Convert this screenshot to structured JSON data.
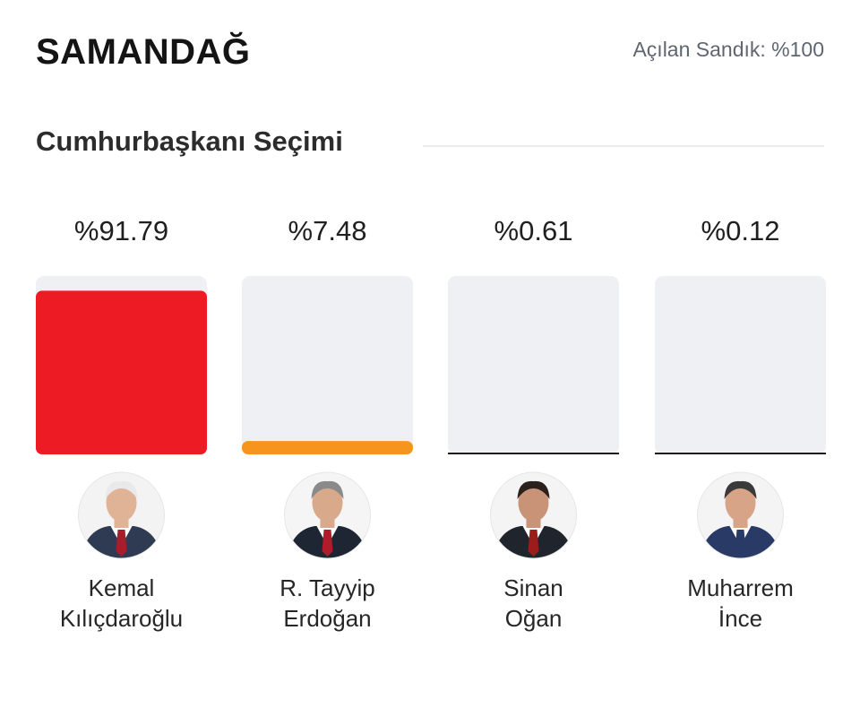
{
  "header": {
    "city": "SAMANDAĞ",
    "opened_ballot_boxes": "Açılan Sandık: %100"
  },
  "section": {
    "title": "Cumhurbaşkanı Seçimi"
  },
  "chart_data": {
    "type": "bar",
    "categories": [
      "Kemal Kılıçdaroğlu",
      "R. Tayyip Erdoğan",
      "Sinan Oğan",
      "Muharrem İnce"
    ],
    "values": [
      91.79,
      7.48,
      0.61,
      0.12
    ],
    "value_labels": [
      "%91.79",
      "%7.48",
      "%0.61",
      "%0.12"
    ],
    "name_lines": [
      [
        "Kemal",
        "Kılıçdaroğlu"
      ],
      [
        "R. Tayyip",
        "Erdoğan"
      ],
      [
        "Sinan",
        "Oğan"
      ],
      [
        "Muharrem",
        "İnce"
      ]
    ],
    "colors": [
      "#ed1c24",
      "#f7941d",
      "#1c1c1c",
      "#1c1c1c"
    ],
    "track_color": "#eef0f3",
    "ylim": [
      0,
      100
    ],
    "title": "",
    "xlabel": "",
    "ylabel": ""
  }
}
